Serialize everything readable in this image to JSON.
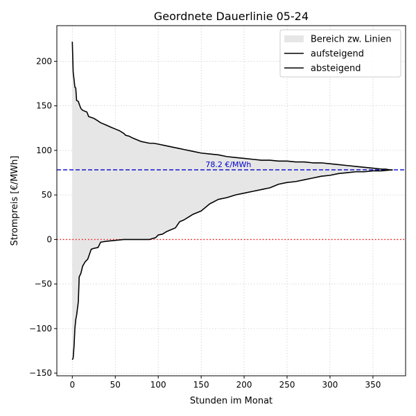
{
  "chart_data": {
    "type": "line",
    "title": "Geordnete Dauerlinie 05-24",
    "xlabel": "Stunden im Monat",
    "ylabel": "Strompreis [€/MWh]",
    "xlim": [
      -18,
      388
    ],
    "ylim": [
      -153,
      240
    ],
    "xticks": [
      0,
      50,
      100,
      150,
      200,
      250,
      300,
      350
    ],
    "yticks": [
      -150,
      -100,
      -50,
      0,
      50,
      100,
      150,
      200
    ],
    "grid": true,
    "legend_position": "top-right",
    "legend": [
      {
        "label": "Bereich zw. Linien",
        "kind": "fill"
      },
      {
        "label": "aufsteigend",
        "kind": "line"
      },
      {
        "label": "absteigend",
        "kind": "line"
      }
    ],
    "reference_lines": [
      {
        "y": 78.2,
        "label": "78.2 €/MWh",
        "color": "#0000cc",
        "style": "dashed"
      },
      {
        "y": 0,
        "label": "",
        "color": "#ff0000",
        "style": "dotted"
      }
    ],
    "fill_color": "#e6e6e6",
    "line_color": "#000000",
    "series": [
      {
        "name": "absteigend",
        "x": [
          0,
          1,
          3,
          4,
          5,
          7,
          8,
          10,
          12,
          17,
          19,
          25,
          30,
          33,
          38,
          45,
          50,
          55,
          60,
          62,
          66,
          70,
          75,
          80,
          90,
          95,
          100,
          110,
          120,
          130,
          140,
          150,
          160,
          170,
          180,
          190,
          200,
          210,
          220,
          230,
          240,
          250,
          260,
          270,
          280,
          290,
          300,
          310,
          320,
          330,
          340,
          350,
          360,
          365,
          370,
          373
        ],
        "y": [
          222,
          188,
          171,
          170,
          156,
          155,
          152,
          147,
          145,
          143,
          138,
          136,
          133,
          131,
          129,
          126,
          124,
          122,
          119,
          117,
          116,
          114,
          112,
          110,
          108,
          108,
          107,
          105,
          103,
          101,
          99,
          97,
          96,
          95,
          93,
          92,
          91,
          90,
          89,
          89,
          88,
          88,
          87,
          87,
          86,
          86,
          85,
          84,
          83,
          82,
          81,
          80,
          79,
          79,
          78,
          78
        ]
      },
      {
        "name": "aufsteigend",
        "x": [
          0,
          1,
          2,
          3,
          4,
          5,
          7,
          8,
          10,
          12,
          15,
          18,
          22,
          25,
          30,
          33,
          40,
          50,
          60,
          70,
          80,
          90,
          93,
          97,
          100,
          105,
          110,
          115,
          120,
          125,
          130,
          135,
          140,
          150,
          160,
          170,
          180,
          190,
          200,
          210,
          220,
          230,
          240,
          250,
          260,
          270,
          280,
          290,
          300,
          310,
          320,
          330,
          340,
          350,
          360,
          370,
          373
        ],
        "y": [
          -135,
          -133,
          -120,
          -100,
          -90,
          -85,
          -70,
          -42,
          -38,
          -30,
          -25,
          -22,
          -11,
          -10,
          -9,
          -3,
          -2,
          -1,
          0,
          0,
          0,
          0,
          1,
          2,
          5,
          6,
          9,
          11,
          13,
          20,
          22,
          25,
          28,
          32,
          40,
          45,
          47,
          50,
          52,
          54,
          56,
          58,
          62,
          64,
          65,
          67,
          69,
          71,
          72,
          74,
          75,
          76,
          76,
          77,
          77,
          78,
          78
        ]
      }
    ]
  }
}
